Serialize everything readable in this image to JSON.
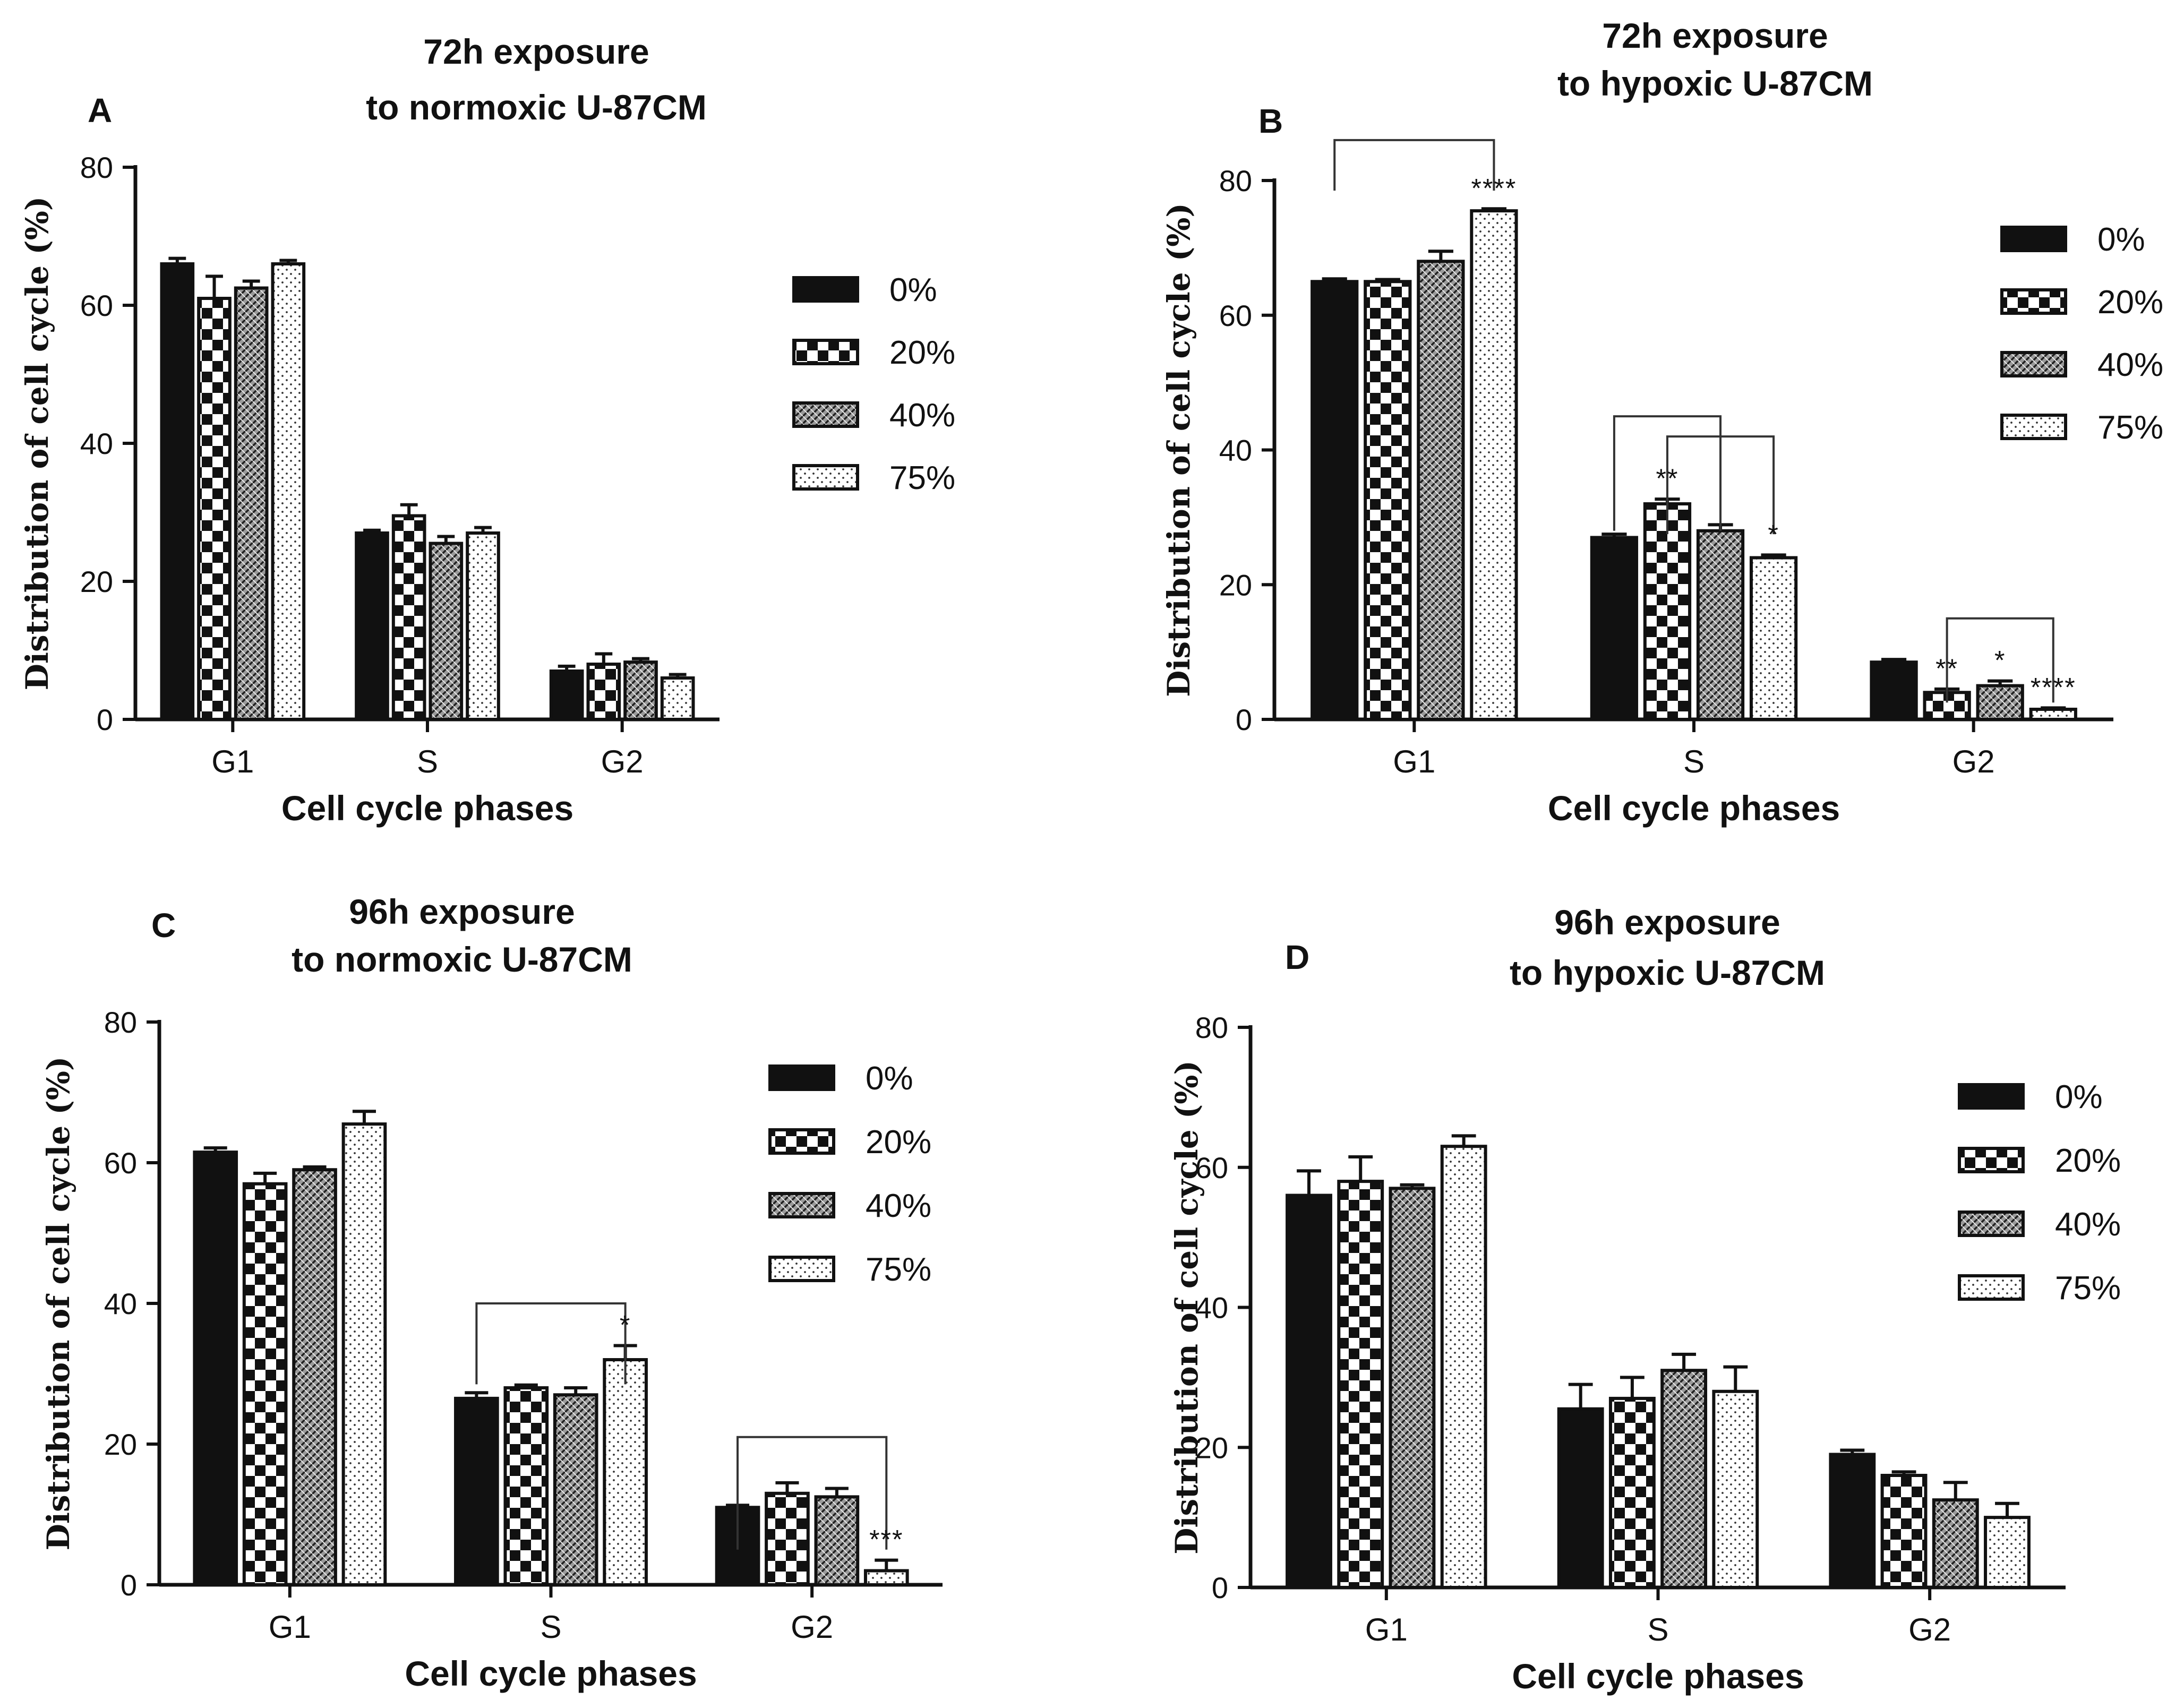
{
  "figure": {
    "background": "#ffffff",
    "axis_color": "#111111",
    "bracket_color": "#333333"
  },
  "legend_labels": [
    "0%",
    "20%",
    "40%",
    "75%"
  ],
  "chart_data": [
    {
      "type": "bar",
      "panel_label": "A",
      "title_lines": [
        "72h exposure",
        "to normoxic U-87CM"
      ],
      "xlabel": "Cell cycle phases",
      "ylabel": "Distribution of cell cycle (%)",
      "ylim": [
        0,
        80
      ],
      "yticks": [
        0,
        20,
        40,
        60,
        80
      ],
      "categories": [
        "G1",
        "S",
        "G2"
      ],
      "series": [
        {
          "name": "0%",
          "pattern": "solid",
          "values": [
            66,
            27,
            7
          ],
          "errors": [
            0.8,
            0.4,
            0.7
          ]
        },
        {
          "name": "20%",
          "pattern": "checker",
          "values": [
            61,
            29.5,
            8
          ],
          "errors": [
            3.2,
            1.6,
            1.5
          ]
        },
        {
          "name": "40%",
          "pattern": "hatch",
          "values": [
            62.5,
            25.5,
            8.3
          ],
          "errors": [
            1.0,
            1.0,
            0.5
          ]
        },
        {
          "name": "75%",
          "pattern": "dots",
          "values": [
            66,
            27,
            6
          ],
          "errors": [
            0.5,
            0.8,
            0.5
          ]
        }
      ],
      "annotations": []
    },
    {
      "type": "bar",
      "panel_label": "B",
      "title_lines": [
        "72h exposure",
        "to hypoxic U-87CM"
      ],
      "xlabel": "Cell cycle phases",
      "ylabel": "Distribution of cell cycle (%)",
      "ylim": [
        0,
        80
      ],
      "yticks": [
        0,
        20,
        40,
        60,
        80
      ],
      "categories": [
        "G1",
        "S",
        "G2"
      ],
      "series": [
        {
          "name": "0%",
          "pattern": "solid",
          "values": [
            65,
            27,
            8.5
          ],
          "errors": [
            0.4,
            0.5,
            0.4
          ]
        },
        {
          "name": "20%",
          "pattern": "checker",
          "values": [
            65,
            32,
            4
          ],
          "errors": [
            0.3,
            0.7,
            0.5
          ]
        },
        {
          "name": "40%",
          "pattern": "hatch",
          "values": [
            68,
            28,
            5
          ],
          "errors": [
            1.5,
            0.9,
            0.7
          ]
        },
        {
          "name": "75%",
          "pattern": "dots",
          "values": [
            75.5,
            24,
            1.5
          ],
          "errors": [
            0.3,
            0.4,
            0.2
          ]
        }
      ],
      "annotations": [
        {
          "category": 0,
          "series": 3,
          "text": "****"
        },
        {
          "category": 1,
          "series": 1,
          "text": "**"
        },
        {
          "category": 1,
          "series": 3,
          "text": "*"
        },
        {
          "category": 2,
          "series": 1,
          "text": "**"
        },
        {
          "category": 2,
          "series": 2,
          "text": "*"
        },
        {
          "category": 2,
          "series": 3,
          "text": "****"
        }
      ],
      "brackets": [
        {
          "category": 0,
          "from": 0,
          "to": 3,
          "level": 86,
          "drop_to": 78.5
        },
        {
          "category": 1,
          "from": 0,
          "to": 2,
          "level": 45,
          "drop_to": 28
        },
        {
          "category": 1,
          "from": 1,
          "to": 3,
          "level": 42,
          "drop_to": 27.5
        },
        {
          "category": 2,
          "from": 1,
          "to": 3,
          "level": 15,
          "drop_to": 2.5
        }
      ]
    },
    {
      "type": "bar",
      "panel_label": "C",
      "title_lines": [
        "96h exposure",
        "to normoxic U-87CM"
      ],
      "xlabel": "Cell cycle phases",
      "ylabel": "Distribution of cell cycle (%)",
      "ylim": [
        0,
        80
      ],
      "yticks": [
        0,
        20,
        40,
        60,
        80
      ],
      "categories": [
        "G1",
        "S",
        "G2"
      ],
      "series": [
        {
          "name": "0%",
          "pattern": "solid",
          "values": [
            61.5,
            26.5,
            11
          ],
          "errors": [
            0.6,
            0.8,
            0.3
          ]
        },
        {
          "name": "20%",
          "pattern": "checker",
          "values": [
            57,
            28,
            13
          ],
          "errors": [
            1.5,
            0.4,
            1.5
          ]
        },
        {
          "name": "40%",
          "pattern": "hatch",
          "values": [
            59,
            27,
            12.5
          ],
          "errors": [
            0.4,
            1.0,
            1.2
          ]
        },
        {
          "name": "75%",
          "pattern": "dots",
          "values": [
            65.5,
            32,
            2
          ],
          "errors": [
            1.8,
            2.0,
            1.5
          ]
        }
      ],
      "annotations": [
        {
          "category": 1,
          "series": 3,
          "text": "*"
        },
        {
          "category": 2,
          "series": 3,
          "text": "***"
        }
      ],
      "brackets": [
        {
          "category": 1,
          "from": 0,
          "to": 3,
          "level": 40,
          "drop_to": 28.5
        },
        {
          "category": 2,
          "from": 0,
          "to": 3,
          "level": 21,
          "drop_to": 5
        }
      ]
    },
    {
      "type": "bar",
      "panel_label": "D",
      "title_lines": [
        "96h exposure",
        "to hypoxic U-87CM"
      ],
      "xlabel": "Cell cycle phases",
      "ylabel": "Distribution of cell cycle (%)",
      "ylim": [
        0,
        80
      ],
      "yticks": [
        0,
        20,
        40,
        60,
        80
      ],
      "categories": [
        "G1",
        "S",
        "G2"
      ],
      "series": [
        {
          "name": "0%",
          "pattern": "solid",
          "values": [
            56,
            25.5,
            19
          ],
          "errors": [
            3.5,
            3.5,
            0.6
          ]
        },
        {
          "name": "20%",
          "pattern": "checker",
          "values": [
            58,
            27,
            16
          ],
          "errors": [
            3.5,
            3.0,
            0.5
          ]
        },
        {
          "name": "40%",
          "pattern": "hatch",
          "values": [
            57,
            31,
            12.5
          ],
          "errors": [
            0.5,
            2.3,
            2.5
          ]
        },
        {
          "name": "75%",
          "pattern": "dots",
          "values": [
            63,
            28,
            10
          ],
          "errors": [
            1.5,
            3.5,
            2.0
          ]
        }
      ],
      "annotations": []
    }
  ]
}
